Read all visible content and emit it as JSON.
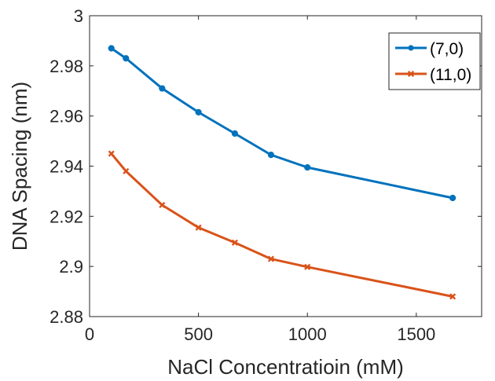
{
  "chart_data": {
    "type": "line",
    "title": "",
    "xlabel": "NaCl Concentratioin (mM)",
    "ylabel": "DNA Spacing (nm)",
    "xlim": [
      0,
      1800
    ],
    "ylim": [
      2.88,
      3.0
    ],
    "xticks": [
      0,
      500,
      1000,
      1500
    ],
    "xtick_labels": [
      "0",
      "500",
      "1000",
      "1500"
    ],
    "yticks": [
      2.88,
      2.9,
      2.92,
      2.94,
      2.96,
      2.98,
      3.0
    ],
    "ytick_labels": [
      "2.88",
      "2.9",
      "2.92",
      "2.94",
      "2.96",
      "2.98",
      "3"
    ],
    "grid": false,
    "legend_position": "top-right",
    "series": [
      {
        "name": "(7,0)",
        "color": "#0072BD",
        "marker": "circle",
        "x": [
          100,
          167,
          333,
          500,
          667,
          833,
          1000,
          1667
        ],
        "y": [
          2.987,
          2.983,
          2.971,
          2.9615,
          2.953,
          2.9445,
          2.9395,
          2.9273
        ]
      },
      {
        "name": "(11,0)",
        "color": "#D95319",
        "marker": "x",
        "x": [
          100,
          167,
          333,
          500,
          667,
          833,
          1000,
          1667
        ],
        "y": [
          2.945,
          2.938,
          2.9245,
          2.9155,
          2.9095,
          2.903,
          2.8998,
          2.888
        ]
      }
    ]
  }
}
